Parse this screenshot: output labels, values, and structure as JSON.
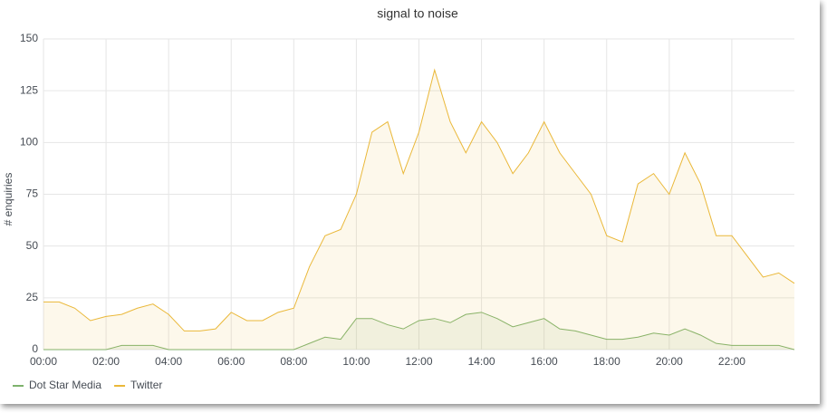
{
  "chart_data": {
    "type": "line",
    "title": "signal to noise",
    "y_label": "# enquiries",
    "x": [
      0,
      0.5,
      1,
      1.5,
      2,
      2.5,
      3,
      3.5,
      4,
      4.5,
      5,
      5.5,
      6,
      6.5,
      7,
      7.5,
      8,
      8.5,
      9,
      9.5,
      10,
      10.5,
      11,
      11.5,
      12,
      12.5,
      13,
      13.5,
      14,
      14.5,
      15,
      15.5,
      16,
      16.5,
      17,
      17.5,
      18,
      18.5,
      19,
      19.5,
      20,
      20.5,
      21,
      21.5,
      22,
      22.5,
      23,
      23.5,
      24
    ],
    "series": [
      {
        "name": "Dot Star Media",
        "color": "#7eb26d",
        "values": [
          0,
          0,
          0,
          0,
          0,
          2,
          2,
          2,
          0,
          0,
          0,
          0,
          0,
          0,
          0,
          0,
          0,
          3,
          6,
          5,
          15,
          15,
          12,
          10,
          14,
          15,
          13,
          17,
          18,
          15,
          11,
          13,
          15,
          10,
          9,
          7,
          5,
          5,
          6,
          8,
          7,
          10,
          7,
          3,
          2,
          2,
          2,
          2,
          0
        ]
      },
      {
        "name": "Twitter",
        "color": "#eab839",
        "values": [
          23,
          23,
          20,
          14,
          16,
          17,
          20,
          22,
          17,
          9,
          9,
          10,
          18,
          14,
          14,
          18,
          20,
          40,
          55,
          58,
          75,
          105,
          110,
          85,
          105,
          135,
          110,
          95,
          110,
          100,
          85,
          95,
          110,
          95,
          85,
          75,
          55,
          52,
          80,
          85,
          75,
          95,
          80,
          55,
          55,
          45,
          35,
          37,
          32
        ]
      }
    ],
    "xlim": [
      0,
      24
    ],
    "xticks": [
      {
        "value": 0,
        "label": "00:00"
      },
      {
        "value": 2,
        "label": "02:00"
      },
      {
        "value": 4,
        "label": "04:00"
      },
      {
        "value": 6,
        "label": "06:00"
      },
      {
        "value": 8,
        "label": "08:00"
      },
      {
        "value": 10,
        "label": "10:00"
      },
      {
        "value": 12,
        "label": "12:00"
      },
      {
        "value": 14,
        "label": "14:00"
      },
      {
        "value": 16,
        "label": "16:00"
      },
      {
        "value": 18,
        "label": "18:00"
      },
      {
        "value": 20,
        "label": "20:00"
      },
      {
        "value": 22,
        "label": "22:00"
      }
    ],
    "ylim": [
      0,
      150
    ],
    "yticks": [
      0,
      25,
      50,
      75,
      100,
      125,
      150
    ],
    "grid": true,
    "fill": true,
    "legend": "bottom-left"
  }
}
